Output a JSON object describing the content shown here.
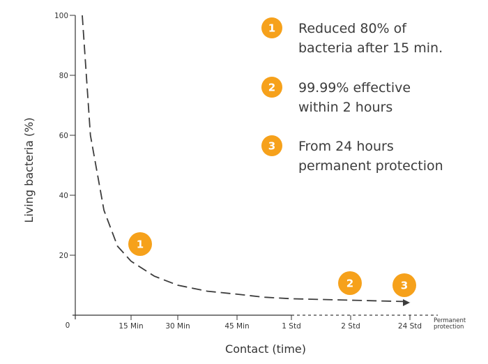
{
  "chart_data": {
    "type": "line",
    "title": "",
    "xlabel": "Contact (time)",
    "ylabel": "Living bacteria (%)",
    "ylim": [
      0,
      100
    ],
    "y_ticks": [
      "20",
      "40",
      "60",
      "80",
      "100"
    ],
    "y_tick_values": [
      20,
      40,
      60,
      80,
      100
    ],
    "origin_label": "0",
    "x_ticks": [
      "15 Min",
      "30 Min",
      "45 Min",
      "1 Std",
      "2 Std",
      "24 Std"
    ],
    "x_end_label": [
      "Permanent",
      "protection"
    ],
    "grid": false,
    "series": [
      {
        "x": [
          0.1,
          0.25,
          0.5,
          0.75,
          1,
          1.5,
          2,
          2.5,
          3,
          3.5,
          4,
          5,
          6,
          7
        ],
        "y": [
          100,
          60,
          35,
          23,
          18,
          13,
          10,
          8,
          7,
          6,
          5.5,
          5,
          4.5,
          4.2
        ]
      }
    ],
    "annotations": [
      {
        "number": "1",
        "text": [
          "Reduced 80% of",
          "bacteria after 15 min."
        ]
      },
      {
        "number": "2",
        "text": [
          "99.99% effective",
          "within 2 hours"
        ]
      },
      {
        "number": "3",
        "text": [
          "From 24 hours",
          "permanent protection"
        ]
      }
    ],
    "colors": {
      "badge": "#F6A11B",
      "line": "#3c3c3c"
    }
  }
}
